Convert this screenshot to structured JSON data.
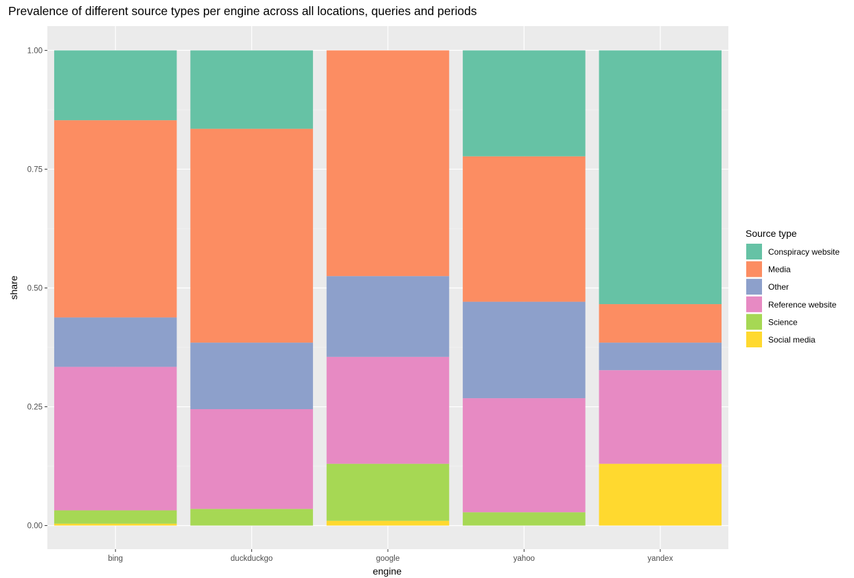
{
  "chart_data": {
    "type": "bar",
    "stacked": true,
    "title": "Prevalence of different source types per engine across all locations, queries and periods",
    "xlabel": "engine",
    "ylabel": "share",
    "ylim": [
      0,
      1
    ],
    "yticks": [
      "0.00",
      "0.25",
      "0.50",
      "0.75",
      "1.00"
    ],
    "grid": true,
    "legend_title": "Source type",
    "legend_position": "right",
    "categories": [
      "bing",
      "duckduckgo",
      "google",
      "yahoo",
      "yandex"
    ],
    "series": [
      {
        "name": "Social media",
        "color": "#FFD92F",
        "values": [
          0.004,
          0.0,
          0.01,
          0.0,
          0.13
        ]
      },
      {
        "name": "Science",
        "color": "#A6D854",
        "values": [
          0.028,
          0.035,
          0.12,
          0.028,
          0.0
        ]
      },
      {
        "name": "Reference website",
        "color": "#E78AC3",
        "values": [
          0.302,
          0.21,
          0.225,
          0.24,
          0.197
        ]
      },
      {
        "name": "Other",
        "color": "#8DA0CB",
        "values": [
          0.104,
          0.14,
          0.17,
          0.203,
          0.058
        ]
      },
      {
        "name": "Media",
        "color": "#FC8D62",
        "values": [
          0.415,
          0.45,
          0.475,
          0.306,
          0.081
        ]
      },
      {
        "name": "Conspiracy website",
        "color": "#66C2A5",
        "values": [
          0.147,
          0.165,
          0.0,
          0.223,
          0.534
        ]
      }
    ],
    "legend_order": [
      "Conspiracy website",
      "Media",
      "Other",
      "Reference website",
      "Science",
      "Social media"
    ]
  }
}
